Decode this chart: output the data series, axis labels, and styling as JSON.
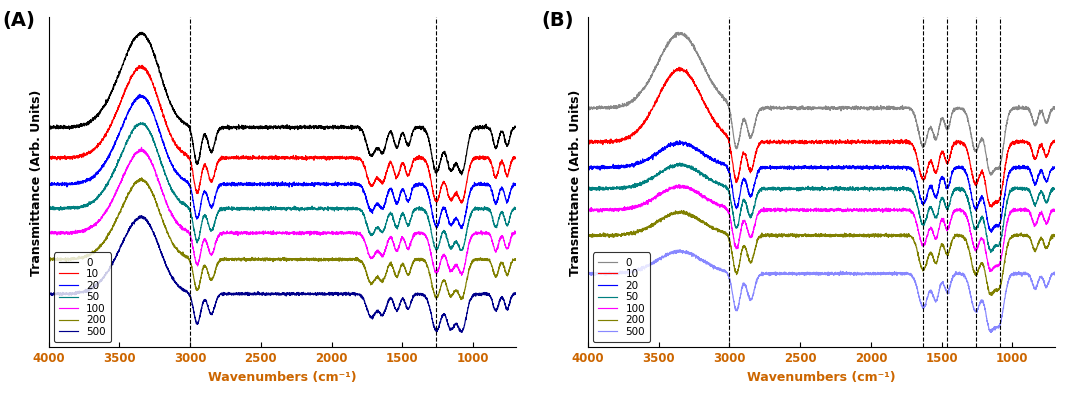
{
  "panel_A_label": "(A)",
  "panel_B_label": "(B)",
  "xlabel": "Wavenumbers (cm⁻¹)",
  "ylabel": "Transmittance (Arb. Units)",
  "xmin": 700,
  "xmax": 4000,
  "xticks": [
    4000,
    3500,
    3000,
    2500,
    2000,
    1500,
    1000
  ],
  "legend_labels": [
    "0",
    "10",
    "20",
    "50",
    "100",
    "200",
    "500"
  ],
  "colors_A": [
    "black",
    "#ff0000",
    "#0000ff",
    "#008080",
    "#ff00ff",
    "#808000",
    "#00008b"
  ],
  "colors_B": [
    "#888888",
    "#ff0000",
    "#0000ff",
    "#008080",
    "#ff00ff",
    "#808000",
    "#8888ff"
  ],
  "vlines_A": [
    3000,
    1260
  ],
  "vlines_B": [
    3000,
    1630,
    1460,
    1260,
    1090
  ],
  "offsets_A": [
    0.9,
    0.75,
    0.62,
    0.5,
    0.38,
    0.25,
    0.08
  ],
  "offsets_B": [
    0.88,
    0.72,
    0.6,
    0.5,
    0.4,
    0.28,
    0.1
  ],
  "background_color": "#ffffff"
}
